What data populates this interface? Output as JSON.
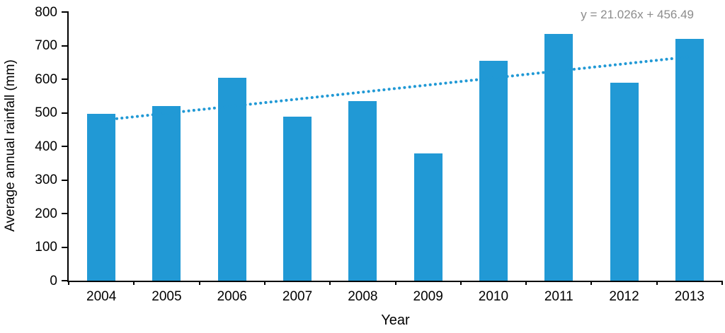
{
  "chart_data": {
    "type": "bar",
    "title": "",
    "categories": [
      "2004",
      "2005",
      "2006",
      "2007",
      "2008",
      "2009",
      "2010",
      "2011",
      "2012",
      "2013"
    ],
    "values": [
      497,
      520,
      605,
      489,
      535,
      380,
      655,
      735,
      590,
      720
    ],
    "xlabel": "Year",
    "ylabel": "Average annual rainfall (mm)",
    "ylim": [
      0,
      800
    ],
    "ytick_step": 100,
    "ytick_labels": [
      "0",
      "100",
      "200",
      "300",
      "400",
      "500",
      "600",
      "700",
      "800"
    ],
    "grid": false,
    "legend_position": "none",
    "trendline": {
      "equation": "y = 21.026x + 456.49",
      "slope": 21.026,
      "intercept": 456.49,
      "style": "dotted"
    },
    "colors": {
      "bar": "#2199D5",
      "trendline": "#2199D5",
      "equation_text": "#8C8C8C",
      "axis": "#000000"
    }
  }
}
